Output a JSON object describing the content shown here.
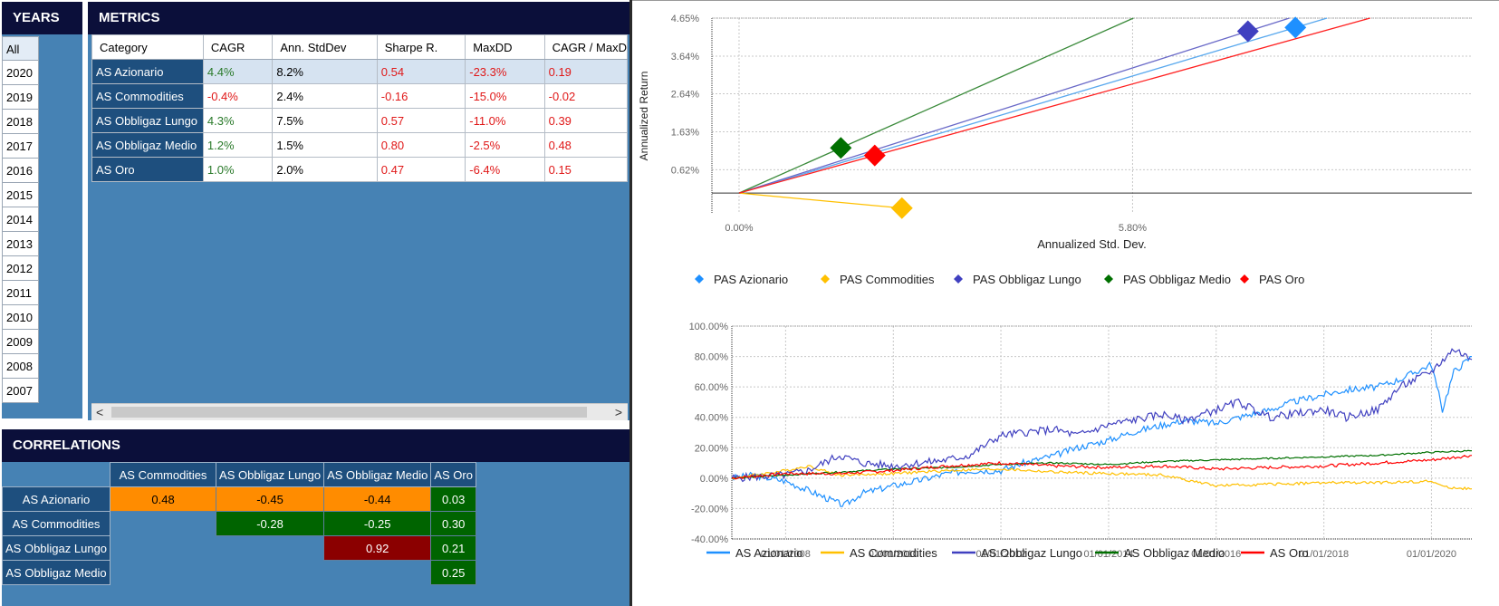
{
  "years": {
    "title": "YEARS",
    "items": [
      "All",
      "2020",
      "2019",
      "2018",
      "2017",
      "2016",
      "2015",
      "2014",
      "2013",
      "2012",
      "2011",
      "2010",
      "2009",
      "2008",
      "2007"
    ],
    "selected": "All"
  },
  "metrics": {
    "title": "METRICS",
    "headers": [
      "Category",
      "CAGR",
      "Ann. StdDev",
      "Sharpe R.",
      "MaxDD",
      "CAGR / MaxD"
    ],
    "rows": [
      {
        "category": "AS Azionario",
        "cagr": "4.4%",
        "stddev": "8.2%",
        "sharpe": "0.54",
        "maxdd": "-23.3%",
        "cagr_maxdd": "0.19"
      },
      {
        "category": "AS Commodities",
        "cagr": "-0.4%",
        "stddev": "2.4%",
        "sharpe": "-0.16",
        "maxdd": "-15.0%",
        "cagr_maxdd": "-0.02"
      },
      {
        "category": "AS Obbligaz Lungo",
        "cagr": "4.3%",
        "stddev": "7.5%",
        "sharpe": "0.57",
        "maxdd": "-11.0%",
        "cagr_maxdd": "0.39"
      },
      {
        "category": "AS Obbligaz Medio",
        "cagr": "1.2%",
        "stddev": "1.5%",
        "sharpe": "0.80",
        "maxdd": "-2.5%",
        "cagr_maxdd": "0.48"
      },
      {
        "category": "AS Oro",
        "cagr": "1.0%",
        "stddev": "2.0%",
        "sharpe": "0.47",
        "maxdd": "-6.4%",
        "cagr_maxdd": "0.15"
      }
    ],
    "scroll_left": "<",
    "scroll_right": ">"
  },
  "correlations": {
    "title": "CORRELATIONS",
    "columns": [
      "AS Commodities",
      "AS Obbligaz Lungo",
      "AS Obbligaz Medio",
      "AS Oro"
    ],
    "rows": [
      {
        "name": "AS Azionario",
        "values": [
          "0.48",
          "-0.45",
          "-0.44",
          "0.03"
        ]
      },
      {
        "name": "AS Commodities",
        "values": [
          "",
          "-0.28",
          "-0.25",
          "0.30"
        ]
      },
      {
        "name": "AS Obbligaz Lungo",
        "values": [
          "",
          "",
          "0.92",
          "0.21"
        ]
      },
      {
        "name": "AS Obbligaz Medio",
        "values": [
          "",
          "",
          "",
          "0.25"
        ]
      }
    ],
    "colors": {
      "orange": "#ff8c00",
      "green": "#006400",
      "darkred": "#8b0000",
      "text_dark": "#000000",
      "text_light": "#ffffff"
    }
  },
  "chart_data": [
    {
      "type": "scatter",
      "title": "",
      "xlabel": "Annualized Std. Dev.",
      "ylabel": "Annualized Return",
      "xlim": [
        -0.4,
        10.8
      ],
      "ylim": [
        -0.55,
        4.65
      ],
      "x_ticks": [
        {
          "value": 0.0,
          "label": "0.00%"
        },
        {
          "value": 5.8,
          "label": "5.80%"
        }
      ],
      "y_ticks": [
        {
          "value": 4.65,
          "label": "4.65%"
        },
        {
          "value": 3.64,
          "label": "3.64%"
        },
        {
          "value": 2.64,
          "label": "2.64%"
        },
        {
          "value": 1.63,
          "label": "1.63%"
        },
        {
          "value": 0.62,
          "label": "0.62%"
        }
      ],
      "risk_free": 0.0,
      "series": [
        {
          "name": "PAS Azionario",
          "x": 8.2,
          "y": 4.4,
          "color": "#1e90ff"
        },
        {
          "name": "PAS Commodities",
          "x": 2.4,
          "y": -0.4,
          "color": "#ffc000"
        },
        {
          "name": "PAS Obbligaz Lungo",
          "x": 7.5,
          "y": 4.3,
          "color": "#4040c0"
        },
        {
          "name": "PAS Obbligaz Medio",
          "x": 1.5,
          "y": 1.2,
          "color": "#007000"
        },
        {
          "name": "PAS Oro",
          "x": 2.0,
          "y": 1.0,
          "color": "#ff0000"
        }
      ],
      "lines": [
        {
          "from": "origin",
          "through": [
            8.2,
            4.4
          ],
          "color": "#5aa9ee"
        },
        {
          "from": "origin",
          "through": [
            2.4,
            -0.4
          ],
          "color": "#ffc000"
        },
        {
          "from": "origin",
          "through": [
            7.5,
            4.3
          ],
          "color": "#6a6ac8"
        },
        {
          "from": "origin",
          "through": [
            1.5,
            1.2
          ],
          "color": "#3a8a3a"
        },
        {
          "from": "origin",
          "through": [
            2.0,
            1.0
          ],
          "color": "#ff2020"
        }
      ],
      "legend": "bottom",
      "grid": true
    },
    {
      "type": "line",
      "title": "",
      "xlabel": "",
      "ylabel": "",
      "xlim": [
        "2007-01-01",
        "2020-10-01"
      ],
      "ylim": [
        -40,
        100
      ],
      "x_ticks": [
        "01/01/2008",
        "01/01/2010",
        "01/01/2012",
        "01/01/2014",
        "01/01/2016",
        "01/01/2018",
        "01/01/2020"
      ],
      "y_ticks": [
        "100.00%",
        "80.00%",
        "60.00%",
        "40.00%",
        "20.00%",
        "0.00%",
        "-20.00%",
        "-40.00%"
      ],
      "legend": "bottom",
      "grid": true,
      "series": [
        {
          "name": "AS Azionario",
          "color": "#1e90ff",
          "points": [
            [
              "2007-01-01",
              0
            ],
            [
              "2007-06-01",
              2
            ],
            [
              "2008-01-01",
              -2
            ],
            [
              "2008-06-01",
              -8
            ],
            [
              "2009-02-01",
              -18
            ],
            [
              "2009-06-01",
              -10
            ],
            [
              "2010-01-01",
              -5
            ],
            [
              "2010-06-01",
              -2
            ],
            [
              "2011-01-01",
              3
            ],
            [
              "2011-06-01",
              5
            ],
            [
              "2012-01-01",
              5
            ],
            [
              "2012-06-01",
              10
            ],
            [
              "2013-01-01",
              15
            ],
            [
              "2013-06-01",
              20
            ],
            [
              "2014-01-01",
              25
            ],
            [
              "2014-06-01",
              30
            ],
            [
              "2015-01-01",
              35
            ],
            [
              "2015-06-01",
              38
            ],
            [
              "2016-01-01",
              36
            ],
            [
              "2016-06-01",
              40
            ],
            [
              "2017-01-01",
              45
            ],
            [
              "2017-06-01",
              50
            ],
            [
              "2018-01-01",
              55
            ],
            [
              "2018-06-01",
              58
            ],
            [
              "2019-01-01",
              60
            ],
            [
              "2019-06-01",
              65
            ],
            [
              "2020-01-01",
              75
            ],
            [
              "2020-03-15",
              45
            ],
            [
              "2020-06-01",
              70
            ],
            [
              "2020-10-01",
              80
            ]
          ]
        },
        {
          "name": "AS Commodities",
          "color": "#ffc000",
          "points": [
            [
              "2007-01-01",
              0
            ],
            [
              "2008-01-01",
              5
            ],
            [
              "2008-06-01",
              8
            ],
            [
              "2009-01-01",
              2
            ],
            [
              "2010-01-01",
              3
            ],
            [
              "2011-01-01",
              5
            ],
            [
              "2012-01-01",
              6
            ],
            [
              "2013-01-01",
              4
            ],
            [
              "2014-01-01",
              3
            ],
            [
              "2015-01-01",
              2
            ],
            [
              "2016-01-01",
              -5
            ],
            [
              "2017-01-01",
              -4
            ],
            [
              "2018-01-01",
              -3
            ],
            [
              "2019-01-01",
              -3
            ],
            [
              "2020-01-01",
              -2
            ],
            [
              "2020-04-01",
              -6
            ],
            [
              "2020-10-01",
              -7
            ]
          ]
        },
        {
          "name": "AS Obbligaz Lungo",
          "color": "#4040c0",
          "points": [
            [
              "2007-01-01",
              0
            ],
            [
              "2008-01-01",
              2
            ],
            [
              "2008-06-01",
              5
            ],
            [
              "2009-01-01",
              15
            ],
            [
              "2009-06-01",
              10
            ],
            [
              "2010-01-01",
              8
            ],
            [
              "2011-01-01",
              12
            ],
            [
              "2011-06-01",
              15
            ],
            [
              "2012-01-01",
              28
            ],
            [
              "2012-06-01",
              30
            ],
            [
              "2013-01-01",
              32
            ],
            [
              "2013-06-01",
              28
            ],
            [
              "2014-01-01",
              35
            ],
            [
              "2015-01-01",
              42
            ],
            [
              "2015-06-01",
              38
            ],
            [
              "2016-01-01",
              45
            ],
            [
              "2016-06-01",
              50
            ],
            [
              "2017-01-01",
              40
            ],
            [
              "2018-01-01",
              45
            ],
            [
              "2018-06-01",
              40
            ],
            [
              "2019-01-01",
              45
            ],
            [
              "2019-06-01",
              60
            ],
            [
              "2020-01-01",
              70
            ],
            [
              "2020-06-01",
              85
            ],
            [
              "2020-10-01",
              78
            ]
          ]
        },
        {
          "name": "AS Obbligaz Medio",
          "color": "#007000",
          "points": [
            [
              "2007-01-01",
              0
            ],
            [
              "2008-01-01",
              2
            ],
            [
              "2009-01-01",
              4
            ],
            [
              "2010-01-01",
              6
            ],
            [
              "2011-01-01",
              7
            ],
            [
              "2012-01-01",
              9
            ],
            [
              "2013-01-01",
              10
            ],
            [
              "2014-01-01",
              9
            ],
            [
              "2015-01-01",
              11
            ],
            [
              "2016-01-01",
              12
            ],
            [
              "2017-01-01",
              13
            ],
            [
              "2018-01-01",
              14
            ],
            [
              "2019-01-01",
              15
            ],
            [
              "2020-01-01",
              17
            ],
            [
              "2020-10-01",
              18
            ]
          ]
        },
        {
          "name": "AS Oro",
          "color": "#ff0000",
          "points": [
            [
              "2007-01-01",
              0
            ],
            [
              "2008-01-01",
              3
            ],
            [
              "2009-01-01",
              3
            ],
            [
              "2010-01-01",
              5
            ],
            [
              "2011-01-01",
              8
            ],
            [
              "2012-01-01",
              10
            ],
            [
              "2013-01-01",
              8
            ],
            [
              "2014-01-01",
              7
            ],
            [
              "2015-01-01",
              8
            ],
            [
              "2016-01-01",
              6
            ],
            [
              "2017-01-01",
              7
            ],
            [
              "2018-01-01",
              8
            ],
            [
              "2019-01-01",
              10
            ],
            [
              "2020-01-01",
              12
            ],
            [
              "2020-10-01",
              15
            ]
          ]
        }
      ]
    }
  ]
}
